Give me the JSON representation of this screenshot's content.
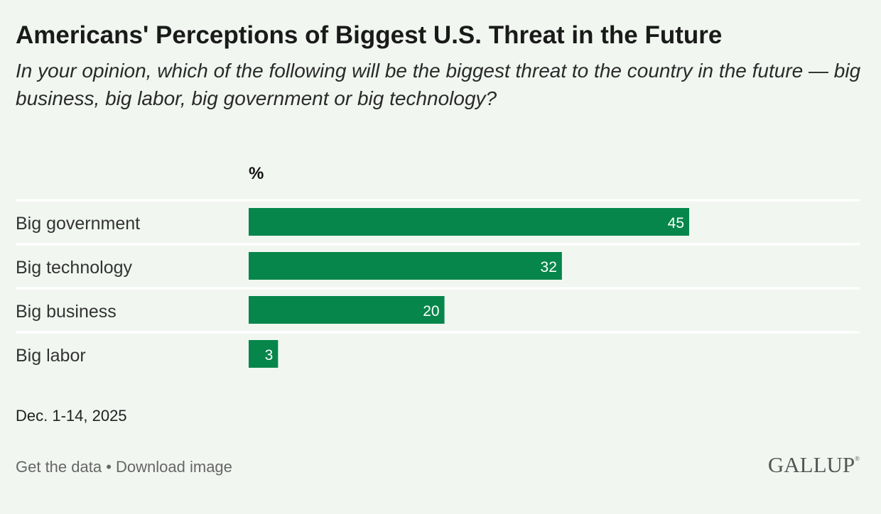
{
  "title": "Americans' Perceptions of Biggest U.S. Threat in the Future",
  "subtitle": "In your opinion, which of the following will be the biggest threat to the country in the future — big business, big labor, big government or big technology?",
  "unit_label": "%",
  "date": "Dec. 1-14, 2025",
  "footer": {
    "get_data": "Get the data",
    "separator": " • ",
    "download": "Download image"
  },
  "logo": {
    "text": "GALLUP",
    "mark": "®"
  },
  "colors": {
    "bar": "#06864a",
    "background": "#f1f6f1",
    "divider": "#ffffff"
  },
  "chart_data": {
    "type": "bar",
    "orientation": "horizontal",
    "title": "Americans' Perceptions of Biggest U.S. Threat in the Future",
    "xlabel": "%",
    "ylabel": "",
    "categories": [
      "Big government",
      "Big technology",
      "Big business",
      "Big labor"
    ],
    "values": [
      45,
      32,
      20,
      3
    ],
    "xlim": [
      0,
      45
    ],
    "grid": false
  }
}
